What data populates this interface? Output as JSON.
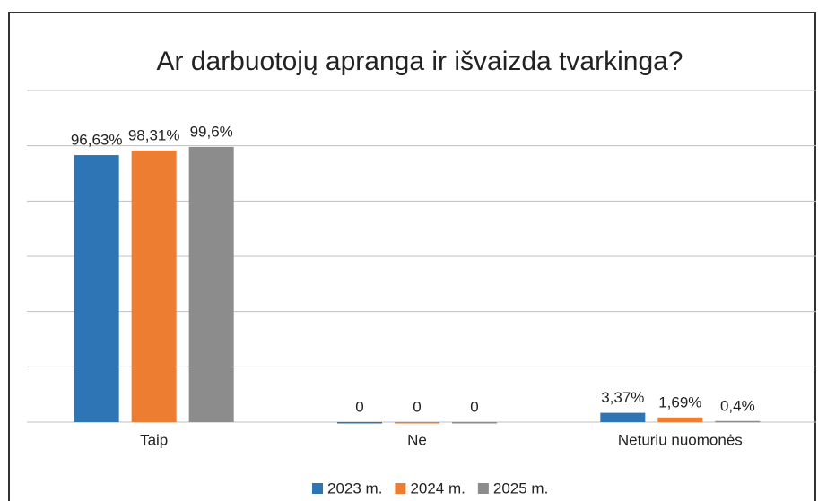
{
  "chart_data": {
    "type": "bar",
    "title": "Ar darbuotojų apranga ir išvaizda tvarkinga?",
    "categories": [
      "Taip",
      "Ne",
      "Neturiu nuomonės"
    ],
    "series": [
      {
        "name": "2023 m.",
        "color": "#2e75b6",
        "values": [
          96.63,
          0,
          3.37
        ],
        "value_labels": [
          "96,63%",
          "0",
          "3,37%"
        ]
      },
      {
        "name": "2024 m.",
        "color": "#ed7d31",
        "values": [
          98.31,
          0,
          1.69
        ],
        "value_labels": [
          "98,31%",
          "0",
          "1,69%"
        ]
      },
      {
        "name": "2025 m.",
        "color": "#8c8c8c",
        "values": [
          99.6,
          0,
          0.4
        ],
        "value_labels": [
          "99,6%",
          "0",
          "0,4%"
        ]
      }
    ],
    "ylim": [
      0,
      120
    ],
    "yticks": [
      0,
      20,
      40,
      60,
      80,
      100,
      120
    ],
    "grid": true,
    "legend": "bottom"
  }
}
